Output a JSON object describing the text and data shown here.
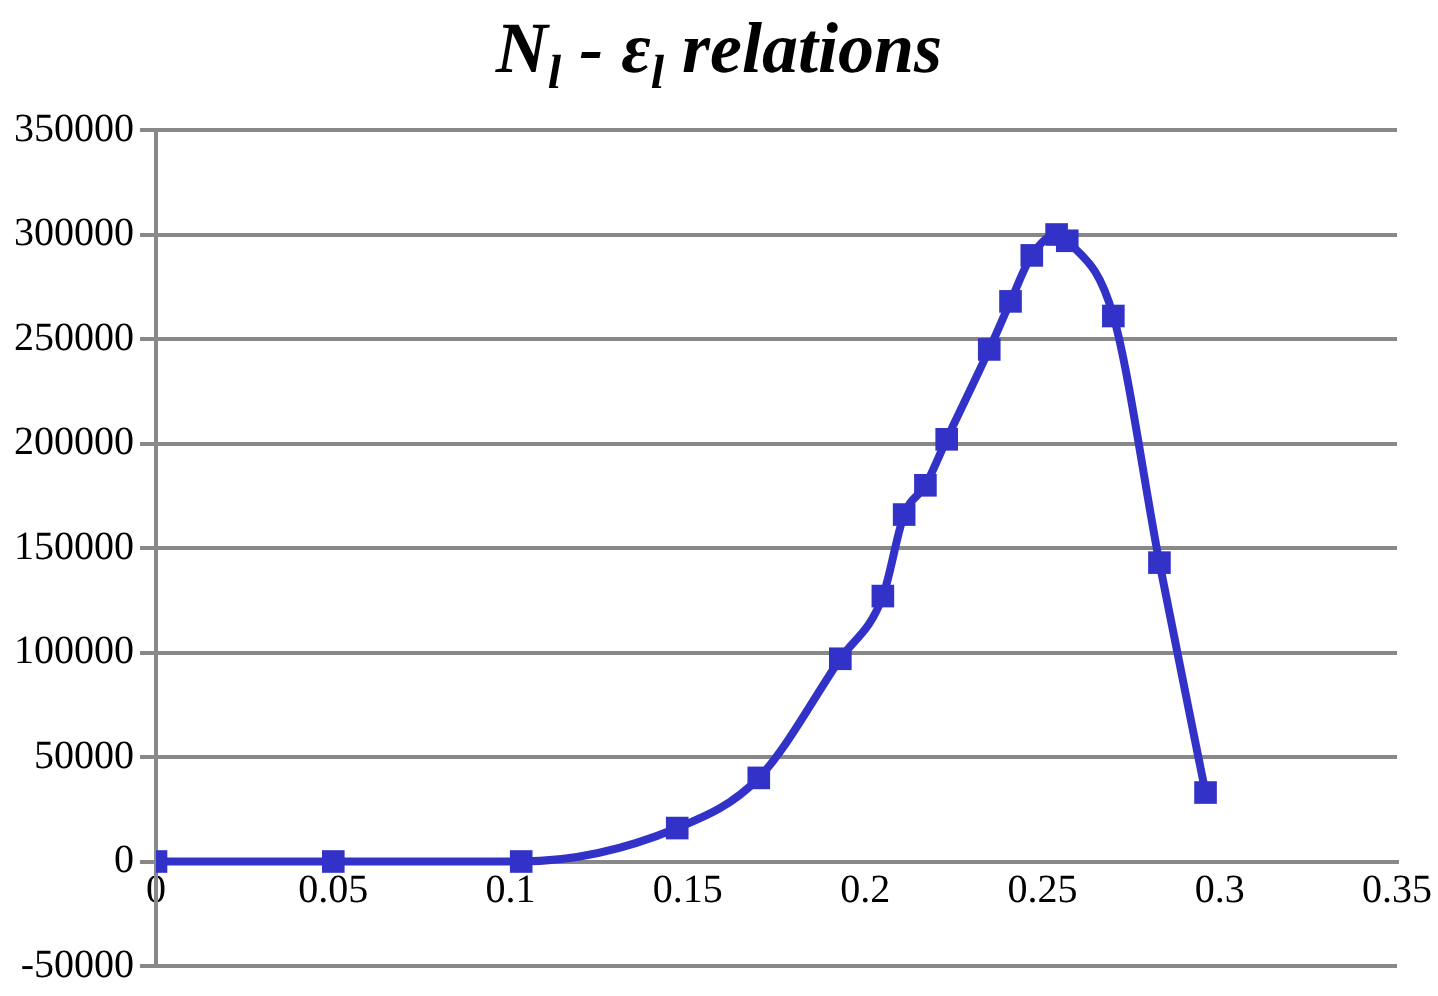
{
  "chart_data": {
    "type": "line",
    "title": "N$_{l}$ - ε$_{l}$ relations",
    "series": [
      {
        "color": "#3232c8",
        "x": [
          0,
          0.05,
          0.103,
          0.147,
          0.17,
          0.193,
          0.205,
          0.211,
          0.217,
          0.223,
          0.235,
          0.241,
          0.247,
          0.254,
          0.257,
          0.27,
          0.283,
          0.296
        ],
        "values": [
          0,
          0,
          0,
          16000,
          40000,
          97000,
          127000,
          166000,
          180000,
          202000,
          245000,
          268000,
          290000,
          300000,
          297000,
          261000,
          143000,
          33000
        ]
      }
    ],
    "xlim": [
      0,
      0.35
    ],
    "xticks": [
      0,
      0.05,
      0.1,
      0.15,
      0.2,
      0.25,
      0.3,
      0.35
    ],
    "ylim": [
      -50000,
      350000
    ],
    "yticks": [
      -50000,
      0,
      50000,
      100000,
      150000,
      200000,
      250000,
      300000,
      350000
    ],
    "grid": "y",
    "legend": false,
    "marker": "square",
    "line_style": "solid"
  }
}
